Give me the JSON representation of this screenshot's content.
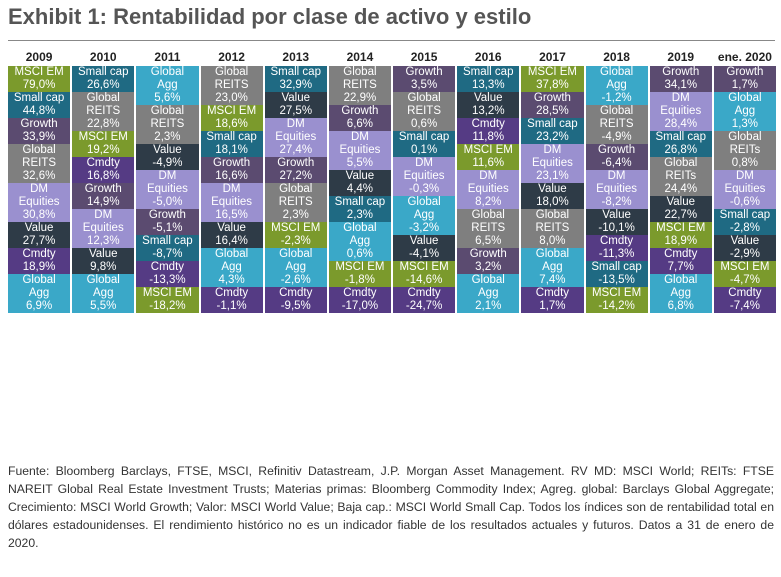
{
  "title": "Exhibit 1: Rentabilidad por clase de activo y estilo",
  "columns": [
    {
      "year": "2009",
      "cells": [
        {
          "asset": "MSCI EM",
          "value": "79,0%",
          "color": "#7b9a2c"
        },
        {
          "asset": "Small cap",
          "value": "44,8%",
          "color": "#1f6a83"
        },
        {
          "asset": "Growth",
          "value": "33,9%",
          "color": "#5b4b70"
        },
        {
          "asset": "Global REITS",
          "value": "32,6%",
          "color": "#7f7f7f"
        },
        {
          "asset": "DM Equities",
          "value": "30,8%",
          "color": "#9a90cf"
        },
        {
          "asset": "Value",
          "value": "27,7%",
          "color": "#2e3b47"
        },
        {
          "asset": "Cmdty",
          "value": "18,9%",
          "color": "#553b84"
        },
        {
          "asset": "Global Agg",
          "value": "6,9%",
          "color": "#3aa8c8"
        }
      ]
    },
    {
      "year": "2010",
      "cells": [
        {
          "asset": "Small cap",
          "value": "26,6%",
          "color": "#1f6a83"
        },
        {
          "asset": "Global REITS",
          "value": "22,8%",
          "color": "#7f7f7f"
        },
        {
          "asset": "MSCI EM",
          "value": "19,2%",
          "color": "#7b9a2c"
        },
        {
          "asset": "Cmdty",
          "value": "16,8%",
          "color": "#553b84"
        },
        {
          "asset": "Growth",
          "value": "14,9%",
          "color": "#5b4b70"
        },
        {
          "asset": "DM Equities",
          "value": "12,3%",
          "color": "#9a90cf"
        },
        {
          "asset": "Value",
          "value": "9,8%",
          "color": "#2e3b47"
        },
        {
          "asset": "Global Agg",
          "value": "5,5%",
          "color": "#3aa8c8"
        }
      ]
    },
    {
      "year": "2011",
      "cells": [
        {
          "asset": "Global Agg",
          "value": "5,6%",
          "color": "#3aa8c8"
        },
        {
          "asset": "Global REITS",
          "value": "2,3%",
          "color": "#7f7f7f"
        },
        {
          "asset": "Value",
          "value": "-4,9%",
          "color": "#2e3b47"
        },
        {
          "asset": "DM Equities",
          "value": "-5,0%",
          "color": "#9a90cf"
        },
        {
          "asset": "Growth",
          "value": "-5,1%",
          "color": "#5b4b70"
        },
        {
          "asset": "Small cap",
          "value": "-8,7%",
          "color": "#1f6a83"
        },
        {
          "asset": "Cmdty",
          "value": "-13,3%",
          "color": "#553b84"
        },
        {
          "asset": "MSCI EM",
          "value": "-18,2%",
          "color": "#7b9a2c"
        }
      ]
    },
    {
      "year": "2012",
      "cells": [
        {
          "asset": "Global REITS",
          "value": "23,0%",
          "color": "#7f7f7f"
        },
        {
          "asset": "MSCI EM",
          "value": "18,6%",
          "color": "#7b9a2c"
        },
        {
          "asset": "Small cap",
          "value": "18,1%",
          "color": "#1f6a83"
        },
        {
          "asset": "Growth",
          "value": "16,6%",
          "color": "#5b4b70"
        },
        {
          "asset": "DM Equities",
          "value": "16,5%",
          "color": "#9a90cf"
        },
        {
          "asset": "Value",
          "value": "16,4%",
          "color": "#2e3b47"
        },
        {
          "asset": "Global Agg",
          "value": "4,3%",
          "color": "#3aa8c8"
        },
        {
          "asset": "Cmdty",
          "value": "-1,1%",
          "color": "#553b84"
        }
      ]
    },
    {
      "year": "2013",
      "cells": [
        {
          "asset": "Small cap",
          "value": "32,9%",
          "color": "#1f6a83"
        },
        {
          "asset": "Value",
          "value": "27,5%",
          "color": "#2e3b47"
        },
        {
          "asset": "DM Equities",
          "value": "27,4%",
          "color": "#9a90cf"
        },
        {
          "asset": "Growth",
          "value": "27,2%",
          "color": "#5b4b70"
        },
        {
          "asset": "Global REITS",
          "value": "2,3%",
          "color": "#7f7f7f"
        },
        {
          "asset": "MSCI EM",
          "value": "-2,3%",
          "color": "#7b9a2c"
        },
        {
          "asset": "Global Agg",
          "value": "-2,6%",
          "color": "#3aa8c8"
        },
        {
          "asset": "Cmdty",
          "value": "-9,5%",
          "color": "#553b84"
        }
      ]
    },
    {
      "year": "2014",
      "cells": [
        {
          "asset": "Global REITS",
          "value": "22,9%",
          "color": "#7f7f7f"
        },
        {
          "asset": "Growth",
          "value": "6,6%",
          "color": "#5b4b70"
        },
        {
          "asset": "DM Equities",
          "value": "5,5%",
          "color": "#9a90cf"
        },
        {
          "asset": "Value",
          "value": "4,4%",
          "color": "#2e3b47"
        },
        {
          "asset": "Small cap",
          "value": "2,3%",
          "color": "#1f6a83"
        },
        {
          "asset": "Global Agg",
          "value": "0,6%",
          "color": "#3aa8c8"
        },
        {
          "asset": "MSCI EM",
          "value": "-1,8%",
          "color": "#7b9a2c"
        },
        {
          "asset": "Cmdty",
          "value": "-17,0%",
          "color": "#553b84"
        }
      ]
    },
    {
      "year": "2015",
      "cells": [
        {
          "asset": "Growth",
          "value": "3,5%",
          "color": "#5b4b70"
        },
        {
          "asset": "Global REITS",
          "value": "0,6%",
          "color": "#7f7f7f"
        },
        {
          "asset": "Small cap",
          "value": "0,1%",
          "color": "#1f6a83"
        },
        {
          "asset": "DM Equities",
          "value": "-0,3%",
          "color": "#9a90cf"
        },
        {
          "asset": "Global Agg",
          "value": "-3,2%",
          "color": "#3aa8c8"
        },
        {
          "asset": "Value",
          "value": "-4,1%",
          "color": "#2e3b47"
        },
        {
          "asset": "MSCI EM",
          "value": "-14,6%",
          "color": "#7b9a2c"
        },
        {
          "asset": "Cmdty",
          "value": "-24,7%",
          "color": "#553b84"
        }
      ]
    },
    {
      "year": "2016",
      "cells": [
        {
          "asset": "Small cap",
          "value": "13,3%",
          "color": "#1f6a83"
        },
        {
          "asset": "Value",
          "value": "13,2%",
          "color": "#2e3b47"
        },
        {
          "asset": "Cmdty",
          "value": "11,8%",
          "color": "#553b84"
        },
        {
          "asset": "MSCI EM",
          "value": "11,6%",
          "color": "#7b9a2c"
        },
        {
          "asset": "DM Equities",
          "value": "8,2%",
          "color": "#9a90cf"
        },
        {
          "asset": "Global REITS",
          "value": "6,5%",
          "color": "#7f7f7f"
        },
        {
          "asset": "Growth",
          "value": "3,2%",
          "color": "#5b4b70"
        },
        {
          "asset": "Global Agg",
          "value": "2,1%",
          "color": "#3aa8c8"
        }
      ]
    },
    {
      "year": "2017",
      "cells": [
        {
          "asset": "MSCI EM",
          "value": "37,8%",
          "color": "#7b9a2c"
        },
        {
          "asset": "Growth",
          "value": "28,5%",
          "color": "#5b4b70"
        },
        {
          "asset": "Small cap",
          "value": "23,2%",
          "color": "#1f6a83"
        },
        {
          "asset": "DM Equities",
          "value": "23,1%",
          "color": "#9a90cf"
        },
        {
          "asset": "Value",
          "value": "18,0%",
          "color": "#2e3b47"
        },
        {
          "asset": "Global REITS",
          "value": "8,0%",
          "color": "#7f7f7f"
        },
        {
          "asset": "Global Agg",
          "value": "7,4%",
          "color": "#3aa8c8"
        },
        {
          "asset": "Cmdty",
          "value": "1,7%",
          "color": "#553b84"
        }
      ]
    },
    {
      "year": "2018",
      "cells": [
        {
          "asset": "Global Agg",
          "value": "-1,2%",
          "color": "#3aa8c8"
        },
        {
          "asset": "Global REITS",
          "value": "-4,9%",
          "color": "#7f7f7f"
        },
        {
          "asset": "Growth",
          "value": "-6,4%",
          "color": "#5b4b70"
        },
        {
          "asset": "DM Equities",
          "value": "-8,2%",
          "color": "#9a90cf"
        },
        {
          "asset": "Value",
          "value": "-10,1%",
          "color": "#2e3b47"
        },
        {
          "asset": "Cmdty",
          "value": "-11,3%",
          "color": "#553b84"
        },
        {
          "asset": "Small cap",
          "value": "-13,5%",
          "color": "#1f6a83"
        },
        {
          "asset": "MSCI EM",
          "value": "-14,2%",
          "color": "#7b9a2c"
        }
      ]
    },
    {
      "year": "2019",
      "cells": [
        {
          "asset": "Growth",
          "value": "34,1%",
          "color": "#5b4b70"
        },
        {
          "asset": "DM Equities",
          "value": "28,4%",
          "color": "#9a90cf"
        },
        {
          "asset": "Small cap",
          "value": "26,8%",
          "color": "#1f6a83"
        },
        {
          "asset": "Global REITs",
          "value": "24,4%",
          "color": "#7f7f7f"
        },
        {
          "asset": "Value",
          "value": "22,7%",
          "color": "#2e3b47"
        },
        {
          "asset": "MSCI EM",
          "value": "18,9%",
          "color": "#7b9a2c"
        },
        {
          "asset": "Cmdty",
          "value": "7,7%",
          "color": "#553b84"
        },
        {
          "asset": "Global Agg",
          "value": "6,8%",
          "color": "#3aa8c8"
        }
      ]
    },
    {
      "year": "ene. 2020",
      "cells": [
        {
          "asset": "Growth",
          "value": "1,7%",
          "color": "#5b4b70"
        },
        {
          "asset": "Global Agg",
          "value": "1,3%",
          "color": "#3aa8c8"
        },
        {
          "asset": "Global REITs",
          "value": "0,8%",
          "color": "#7f7f7f"
        },
        {
          "asset": "DM Equities",
          "value": "-0,6%",
          "color": "#9a90cf"
        },
        {
          "asset": "Small cap",
          "value": "-2,8%",
          "color": "#1f6a83"
        },
        {
          "asset": "Value",
          "value": "-2,9%",
          "color": "#2e3b47"
        },
        {
          "asset": "MSCI EM",
          "value": "-4,7%",
          "color": "#7b9a2c"
        },
        {
          "asset": "Cmdty",
          "value": "-7,4%",
          "color": "#553b84"
        }
      ]
    }
  ],
  "footnote": "Fuente: Bloomberg Barclays, FTSE, MSCI, Refinitiv Datastream, J.P. Morgan Asset Management. RV MD: MSCI World; REITs: FTSE NAREIT Global Real Estate Investment Trusts; Materias primas: Bloomberg Commodity Index; Agreg. global: Barclays Global Aggregate; Crecimiento: MSCI World Growth; Valor: MSCI World Value; Baja cap.: MSCI World Small Cap. Todos los índices son de rentabilidad total en dólares estadounidenses. El rendimiento histórico no es un indicador fiable de los resultados actuales y futuros. Datos a 31 de enero de 2020."
}
